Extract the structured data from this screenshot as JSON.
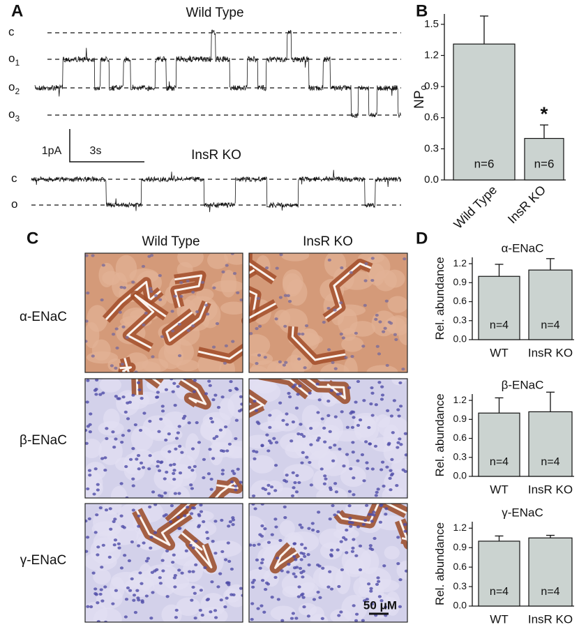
{
  "panel_labels": [
    "A",
    "B",
    "C",
    "D"
  ],
  "traces": {
    "title_wt": "Wild Type",
    "levels_wt": [
      {
        "label": "c"
      },
      {
        "label": "o",
        "sub": "1"
      },
      {
        "label": "o",
        "sub": "2"
      },
      {
        "label": "o",
        "sub": "3"
      }
    ],
    "scale_current": "1pA",
    "scale_time": "3s",
    "title_ko": "InsR KO",
    "levels_ko": [
      {
        "label": "c"
      },
      {
        "label": "o"
      }
    ]
  },
  "micrographs": {
    "columns": [
      "Wild Type",
      "InsR KO"
    ],
    "rows": [
      "α-ENaC",
      "β-ENaC",
      "γ-ENaC"
    ],
    "scale_bar": "50 μM"
  },
  "chart_data": [
    {
      "type": "bar",
      "ylabel": "NP",
      "ylabel_sub": "o",
      "categories": [
        "Wild Type",
        "InsR KO"
      ],
      "values": [
        1.31,
        0.4
      ],
      "errors": [
        0.27,
        0.13
      ],
      "annotations": [
        "n=6",
        "n=6"
      ],
      "significance": [
        null,
        "*"
      ],
      "color": "#cbd3d0",
      "ylim": [
        0,
        1.6
      ],
      "yticks": [
        {
          "value": 0,
          "label": "0.0"
        },
        0.3,
        0.6,
        0.9,
        1.2,
        1.5
      ]
    },
    {
      "type": "bar",
      "title": "α-ENaC",
      "ylabel": "Rel. abundance",
      "categories": [
        "WT",
        "InsR KO"
      ],
      "values": [
        1.0,
        1.1
      ],
      "errors": [
        0.19,
        0.18
      ],
      "annotations": [
        "n=4",
        "n=4"
      ],
      "color": "#cbd3d0",
      "ylim": [
        0,
        1.3
      ],
      "yticks": [
        {
          "value": 0,
          "label": "0.0"
        },
        0.3,
        0.6,
        0.9,
        1.2
      ]
    },
    {
      "type": "bar",
      "title": "β-ENaC",
      "ylabel": "Rel. abundance",
      "categories": [
        "WT",
        "InsR KO"
      ],
      "values": [
        1.0,
        1.02
      ],
      "errors": [
        0.24,
        0.31
      ],
      "annotations": [
        "n=4",
        "n=4"
      ],
      "color": "#cbd3d0",
      "ylim": [
        0,
        1.3
      ],
      "yticks": [
        {
          "value": 0,
          "label": "0.0"
        },
        0.3,
        0.6,
        0.9,
        1.2
      ]
    },
    {
      "type": "bar",
      "title": "γ-ENaC",
      "ylabel": "Rel. abundance",
      "categories": [
        "WT",
        "InsR KO"
      ],
      "values": [
        1.0,
        1.05
      ],
      "errors": [
        0.08,
        0.04
      ],
      "annotations": [
        "n=4",
        "n=4"
      ],
      "color": "#cbd3d0",
      "ylim": [
        0,
        1.3
      ],
      "yticks": [
        {
          "value": 0,
          "label": "0.0"
        },
        0.3,
        0.6,
        0.9,
        1.2
      ]
    }
  ]
}
